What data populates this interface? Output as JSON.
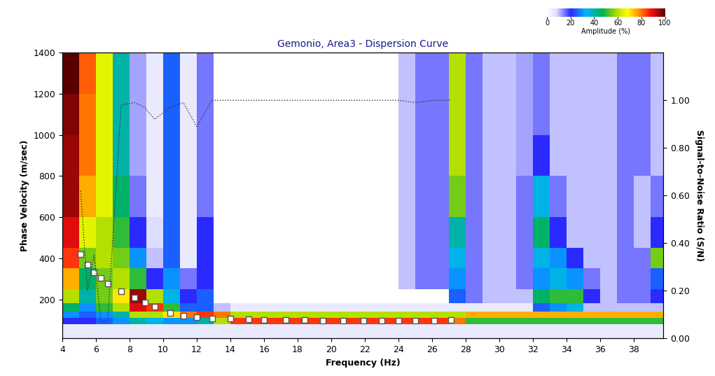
{
  "chart_data": {
    "type": "heatmap",
    "title": "Gemonio, Area3 - Dispersion Curve",
    "x_label": "Frequency (Hz)",
    "y_label": "Phase Velocity (m/sec)",
    "y2_label": "Signal-to-Noise Ratio (S/N)",
    "xlim": [
      4,
      39.75
    ],
    "ylim": [
      10,
      1400
    ],
    "y2lim": [
      0,
      1.2
    ],
    "xticks": [
      4,
      6,
      8,
      10,
      12,
      14,
      16,
      18,
      20,
      22,
      24,
      26,
      28,
      30,
      32,
      34,
      36,
      38
    ],
    "yticks": [
      200,
      400,
      600,
      800,
      1000,
      1200,
      1400
    ],
    "y2ticks": [
      {
        "value": 0,
        "label": "0.00"
      },
      {
        "value": 0.2,
        "label": "0.20"
      },
      {
        "value": 0.4,
        "label": "0.40"
      },
      {
        "value": 0.6,
        "label": "0.60"
      },
      {
        "value": 0.8,
        "label": "0.80"
      },
      {
        "value": 1.0,
        "label": "1.00"
      }
    ],
    "x_edges": [
      4,
      5,
      6,
      7,
      8,
      9,
      10,
      11,
      12,
      13,
      14,
      15,
      16,
      17,
      18,
      19,
      20,
      21,
      22,
      23,
      24,
      25,
      26,
      27,
      28,
      29,
      30,
      31,
      32,
      33,
      34,
      35,
      36,
      37,
      38,
      39,
      40
    ],
    "y_edges": [
      10,
      80,
      110,
      140,
      180,
      250,
      350,
      450,
      600,
      800,
      1000,
      1200,
      1400
    ],
    "cells": [
      [
        5,
        5,
        5,
        5,
        5,
        5,
        5,
        5,
        5,
        5,
        5,
        5,
        5,
        5,
        5,
        5,
        5,
        5,
        5,
        5,
        5,
        5,
        5,
        5,
        5,
        5,
        5,
        5,
        5,
        5,
        5,
        5,
        5,
        5,
        5,
        5
      ],
      [
        20,
        20,
        25,
        30,
        40,
        35,
        30,
        30,
        40,
        60,
        85,
        85,
        85,
        85,
        85,
        85,
        85,
        85,
        85,
        85,
        85,
        85,
        85,
        80,
        50,
        50,
        50,
        50,
        50,
        50,
        50,
        50,
        50,
        50,
        50,
        50
      ],
      [
        30,
        25,
        30,
        40,
        60,
        60,
        70,
        80,
        85,
        80,
        60,
        60,
        60,
        60,
        60,
        60,
        60,
        60,
        60,
        60,
        60,
        60,
        60,
        60,
        75,
        75,
        75,
        75,
        75,
        75,
        75,
        75,
        75,
        75,
        75,
        75
      ],
      [
        45,
        30,
        50,
        60,
        90,
        85,
        50,
        25,
        25,
        10,
        5,
        5,
        5,
        5,
        5,
        5,
        5,
        5,
        5,
        5,
        5,
        5,
        5,
        5,
        5,
        5,
        5,
        5,
        25,
        30,
        35,
        10,
        10,
        10,
        10,
        10
      ],
      [
        60,
        40,
        55,
        70,
        95,
        60,
        35,
        20,
        25,
        0,
        0,
        0,
        0,
        0,
        0,
        0,
        0,
        0,
        0,
        0,
        0,
        0,
        0,
        25,
        15,
        10,
        10,
        10,
        45,
        50,
        50,
        20,
        10,
        15,
        15,
        20
      ],
      [
        75,
        45,
        55,
        60,
        50,
        20,
        30,
        15,
        20,
        0,
        0,
        0,
        0,
        0,
        0,
        0,
        0,
        0,
        0,
        0,
        10,
        15,
        15,
        30,
        15,
        10,
        10,
        15,
        30,
        35,
        30,
        15,
        10,
        15,
        15,
        25
      ],
      [
        85,
        55,
        60,
        55,
        30,
        10,
        25,
        5,
        20,
        0,
        0,
        0,
        0,
        0,
        0,
        0,
        0,
        0,
        0,
        0,
        10,
        15,
        15,
        35,
        15,
        10,
        10,
        15,
        35,
        30,
        20,
        10,
        10,
        15,
        15,
        55
      ],
      [
        90,
        65,
        60,
        50,
        20,
        8,
        25,
        5,
        20,
        0,
        0,
        0,
        0,
        0,
        0,
        0,
        0,
        0,
        0,
        0,
        10,
        15,
        15,
        40,
        15,
        10,
        10,
        15,
        45,
        20,
        10,
        10,
        10,
        15,
        10,
        20
      ],
      [
        95,
        75,
        65,
        45,
        15,
        5,
        25,
        5,
        15,
        0,
        0,
        0,
        0,
        0,
        0,
        0,
        0,
        0,
        0,
        0,
        10,
        15,
        15,
        55,
        15,
        10,
        10,
        15,
        35,
        15,
        10,
        10,
        10,
        15,
        10,
        15
      ],
      [
        95,
        80,
        65,
        40,
        12,
        5,
        25,
        5,
        15,
        0,
        0,
        0,
        0,
        0,
        0,
        0,
        0,
        0,
        0,
        0,
        10,
        15,
        15,
        60,
        15,
        10,
        10,
        12,
        20,
        10,
        10,
        10,
        10,
        15,
        15,
        10
      ],
      [
        97,
        80,
        65,
        40,
        12,
        5,
        25,
        5,
        15,
        0,
        0,
        0,
        0,
        0,
        0,
        0,
        0,
        0,
        0,
        0,
        10,
        15,
        15,
        60,
        15,
        10,
        10,
        12,
        15,
        10,
        10,
        10,
        10,
        15,
        15,
        10
      ],
      [
        100,
        82,
        65,
        40,
        12,
        5,
        25,
        5,
        15,
        0,
        0,
        0,
        0,
        0,
        0,
        0,
        0,
        0,
        0,
        0,
        10,
        15,
        15,
        60,
        15,
        10,
        10,
        12,
        15,
        10,
        10,
        10,
        10,
        15,
        15,
        10
      ]
    ],
    "colorbar": {
      "label": "Amplitude (%)",
      "range": [
        0,
        100
      ],
      "ticks": [
        0,
        20,
        40,
        60,
        80,
        100
      ]
    },
    "series": [
      {
        "type": "scatter",
        "color": "#ffffff",
        "marker": "square",
        "x": [
          5.1,
          5.5,
          5.9,
          6.3,
          6.7,
          7.5,
          8.3,
          8.9,
          9.5,
          10.4,
          11.2,
          12.0,
          12.9,
          14.0,
          15.1,
          16.0,
          17.3,
          18.4,
          19.5,
          20.7,
          21.9,
          23.0,
          24.0,
          25.0,
          26.1,
          27.1
        ],
        "values": [
          420,
          370,
          330,
          305,
          275,
          240,
          210,
          185,
          165,
          135,
          120,
          112,
          108,
          105,
          102,
          100,
          98,
          98,
          97,
          97,
          97,
          97,
          97,
          97,
          97,
          98
        ]
      },
      {
        "type": "line",
        "axis": "y2",
        "color": "#333333",
        "line_style": "dotted",
        "x": [
          5.1,
          5.5,
          5.9,
          6.3,
          6.7,
          7.5,
          8.3,
          8.9,
          9.5,
          10.4,
          11.2,
          12.0,
          12.9,
          14.0,
          15.1,
          16.0,
          17.3,
          18.4,
          19.5,
          20.7,
          21.9,
          23.0,
          24.0,
          25.0,
          26.1,
          27.1
        ],
        "values": [
          0.62,
          0.2,
          0.35,
          0.07,
          0.07,
          0.98,
          0.99,
          0.97,
          0.92,
          0.97,
          0.99,
          0.89,
          1.0,
          1.0,
          1.0,
          1.0,
          1.0,
          1.0,
          1.0,
          1.0,
          1.0,
          1.0,
          1.0,
          0.99,
          1.0,
          1.0
        ]
      }
    ]
  }
}
